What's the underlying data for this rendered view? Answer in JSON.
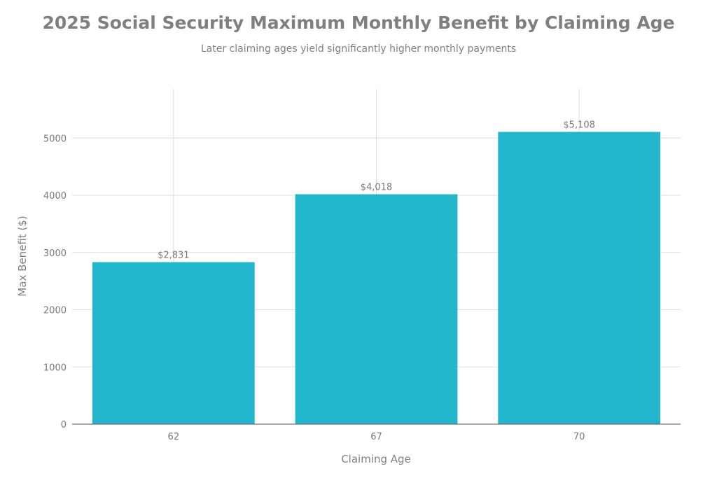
{
  "chart_data": {
    "type": "bar",
    "title": "2025 Social Security Maximum Monthly Benefit by Claiming Age",
    "subtitle": "Later claiming ages yield significantly higher monthly payments",
    "xlabel": "Claiming Age",
    "ylabel": "Max Benefit ($)",
    "categories": [
      "62",
      "67",
      "70"
    ],
    "values": [
      2831,
      4018,
      5108
    ],
    "data_labels": [
      "$2,831",
      "$4,018",
      "$5,108"
    ],
    "yticks": [
      0,
      1000,
      2000,
      3000,
      4000,
      5000
    ],
    "ylim": [
      0,
      5860
    ],
    "grid": true,
    "bar_color": "#21b6cc"
  }
}
